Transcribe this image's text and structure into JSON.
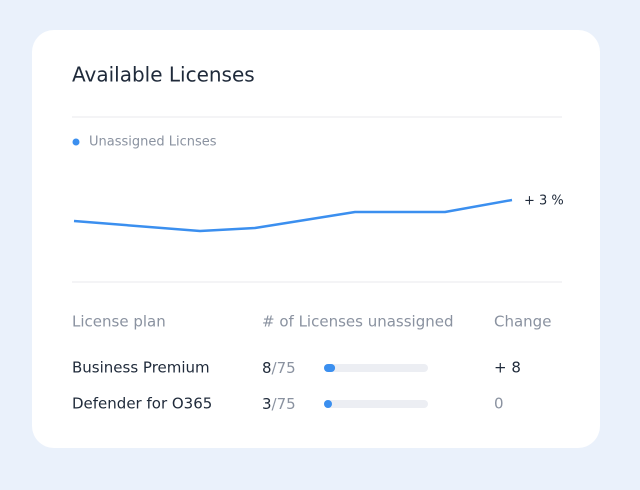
{
  "title": "Available Licenses",
  "chart_data": {
    "type": "line",
    "x": [
      0,
      126,
      181,
      281,
      371,
      438
    ],
    "series": [
      {
        "name": "Unassigned Licnses",
        "color": "#3b8fef",
        "values": [
          10,
          0,
          3,
          19,
          19,
          31
        ]
      }
    ],
    "annotation": "+ 3 %"
  },
  "table": {
    "headers": [
      "License plan",
      "# of Licenses unassigned",
      "Change"
    ],
    "rows": [
      {
        "plan": "Business Premium",
        "count": 8,
        "total": "/75",
        "change": "+ 8"
      },
      {
        "plan": "Defender for O365",
        "count": 3,
        "total": "/75",
        "change": "0"
      }
    ]
  }
}
